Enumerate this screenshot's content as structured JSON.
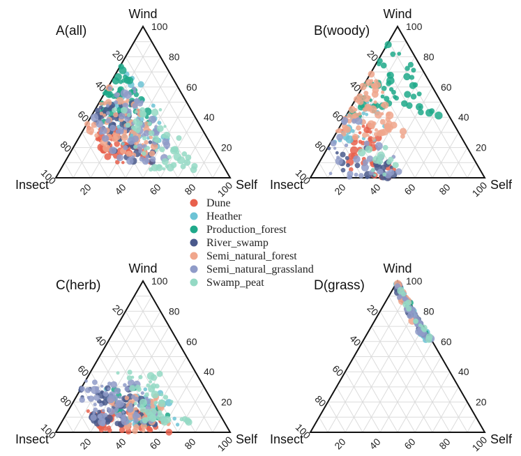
{
  "chart_data": {
    "type": "scatter",
    "subtype": "ternary",
    "vertex_labels": {
      "top": "Wind",
      "left": "Insect",
      "right": "Self"
    },
    "tick_labels": [
      "20",
      "40",
      "60",
      "80",
      "100"
    ],
    "grid": true,
    "legend": {
      "placement": "center",
      "entries": [
        {
          "name": "Dune",
          "color": "#e8604c"
        },
        {
          "name": "Heather",
          "color": "#6cc3d5"
        },
        {
          "name": "Production_forest",
          "color": "#1fa98a"
        },
        {
          "name": "River_swamp",
          "color": "#4a5a8c"
        },
        {
          "name": "Semi_natural_forest",
          "color": "#f0a68c"
        },
        {
          "name": "Semi_natural_grassland",
          "color": "#8f9bc8"
        },
        {
          "name": "Swamp_peat",
          "color": "#94d9c4"
        }
      ]
    },
    "panels": [
      {
        "title": "A(all)",
        "clusters": [
          {
            "series": "Dune",
            "wind": [
              10,
              35
            ],
            "insect": [
              40,
              65
            ],
            "count": 45
          },
          {
            "series": "Heather",
            "wind": [
              20,
              70
            ],
            "insect": [
              20,
              55
            ],
            "count": 40
          },
          {
            "series": "Production_forest",
            "wind": [
              35,
              80
            ],
            "insect": [
              25,
              55
            ],
            "count": 55
          },
          {
            "series": "River_swamp",
            "wind": [
              10,
              50
            ],
            "insect": [
              30,
              60
            ],
            "count": 45
          },
          {
            "series": "Semi_natural_forest",
            "wind": [
              15,
              60
            ],
            "insect": [
              30,
              65
            ],
            "count": 55
          },
          {
            "series": "Semi_natural_grassland",
            "wind": [
              10,
              60
            ],
            "insect": [
              25,
              60
            ],
            "count": 65
          },
          {
            "series": "Swamp_peat",
            "wind": [
              5,
              45
            ],
            "insect": [
              15,
              45
            ],
            "count": 55
          }
        ]
      },
      {
        "title": "B(woody)",
        "clusters": [
          {
            "series": "Dune",
            "wind": [
              0,
              35
            ],
            "insect": [
              45,
              75
            ],
            "count": 35
          },
          {
            "series": "Heather",
            "wind": [
              20,
              65
            ],
            "insect": [
              40,
              75
            ],
            "count": 25
          },
          {
            "series": "Production_forest",
            "wind": [
              40,
              95
            ],
            "insect": [
              5,
              55
            ],
            "count": 55
          },
          {
            "series": "River_swamp",
            "wind": [
              0,
              20
            ],
            "insect": [
              50,
              80
            ],
            "count": 25
          },
          {
            "series": "Semi_natural_forest",
            "wind": [
              25,
              70
            ],
            "insect": [
              30,
              70
            ],
            "count": 75
          },
          {
            "series": "Semi_natural_grassland",
            "wind": [
              0,
              40
            ],
            "insect": [
              45,
              90
            ],
            "count": 30
          },
          {
            "series": "Swamp_peat",
            "wind": [
              0,
              20
            ],
            "insect": [
              45,
              65
            ],
            "count": 12
          }
        ]
      },
      {
        "title": "C(herb)",
        "clusters": [
          {
            "series": "Dune",
            "wind": [
              0,
              15
            ],
            "insect": [
              35,
              75
            ],
            "count": 60
          },
          {
            "series": "Heather",
            "wind": [
              5,
              30
            ],
            "insect": [
              25,
              60
            ],
            "count": 35
          },
          {
            "series": "Production_forest",
            "wind": [
              5,
              30
            ],
            "insect": [
              30,
              60
            ],
            "count": 20
          },
          {
            "series": "River_swamp",
            "wind": [
              5,
              30
            ],
            "insect": [
              40,
              75
            ],
            "count": 60
          },
          {
            "series": "Semi_natural_forest",
            "wind": [
              0,
              25
            ],
            "insect": [
              30,
              60
            ],
            "count": 35
          },
          {
            "series": "Semi_natural_grassland",
            "wind": [
              5,
              35
            ],
            "insect": [
              35,
              75
            ],
            "count": 70
          },
          {
            "series": "Swamp_peat",
            "wind": [
              5,
              40
            ],
            "insect": [
              20,
              45
            ],
            "count": 45
          }
        ]
      },
      {
        "title": "D(grass)",
        "clusters": [
          {
            "series": "Heather",
            "wind": [
              58,
              98
            ],
            "insect": [
              0,
              4
            ],
            "count": 25
          },
          {
            "series": "Production_forest",
            "wind": [
              58,
              96
            ],
            "insect": [
              0,
              3
            ],
            "count": 10
          },
          {
            "series": "River_swamp",
            "wind": [
              60,
              100
            ],
            "insect": [
              0,
              5
            ],
            "count": 25
          },
          {
            "series": "Semi_natural_forest",
            "wind": [
              70,
              100
            ],
            "insect": [
              0,
              5
            ],
            "count": 12
          },
          {
            "series": "Semi_natural_grassland",
            "wind": [
              60,
              100
            ],
            "insect": [
              0,
              5
            ],
            "count": 35
          },
          {
            "series": "Swamp_peat",
            "wind": [
              58,
              95
            ],
            "insect": [
              0,
              3
            ],
            "count": 12
          }
        ]
      }
    ]
  }
}
